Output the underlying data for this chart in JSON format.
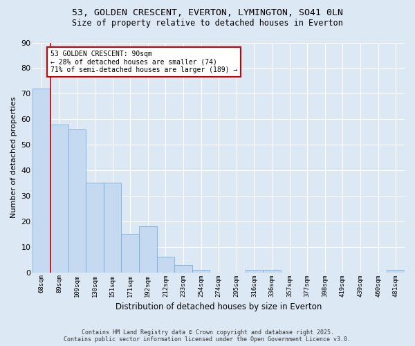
{
  "title1": "53, GOLDEN CRESCENT, EVERTON, LYMINGTON, SO41 0LN",
  "title2": "Size of property relative to detached houses in Everton",
  "xlabel": "Distribution of detached houses by size in Everton",
  "ylabel": "Number of detached properties",
  "categories": [
    "68sqm",
    "89sqm",
    "109sqm",
    "130sqm",
    "151sqm",
    "171sqm",
    "192sqm",
    "212sqm",
    "233sqm",
    "254sqm",
    "274sqm",
    "295sqm",
    "316sqm",
    "336sqm",
    "357sqm",
    "377sqm",
    "398sqm",
    "419sqm",
    "439sqm",
    "460sqm",
    "481sqm"
  ],
  "values": [
    72,
    58,
    56,
    35,
    35,
    15,
    18,
    6,
    3,
    1,
    0,
    0,
    1,
    1,
    0,
    0,
    0,
    0,
    0,
    0,
    1
  ],
  "bar_color": "#c5d9f0",
  "bar_edge_color": "#7aaedc",
  "redline_x": 1,
  "annotation_line1": "53 GOLDEN CRESCENT: 90sqm",
  "annotation_line2": "← 28% of detached houses are smaller (74)",
  "annotation_line3": "71% of semi-detached houses are larger (189) →",
  "annotation_box_color": "#ffffff",
  "annotation_box_edge": "#cc0000",
  "redline_color": "#cc0000",
  "ylim": [
    0,
    90
  ],
  "yticks": [
    0,
    10,
    20,
    30,
    40,
    50,
    60,
    70,
    80,
    90
  ],
  "background_color": "#dde8f5",
  "plot_background": "#dde8f5",
  "grid_color": "#ffffff",
  "footer1": "Contains HM Land Registry data © Crown copyright and database right 2025.",
  "footer2": "Contains public sector information licensed under the Open Government Licence v3.0."
}
